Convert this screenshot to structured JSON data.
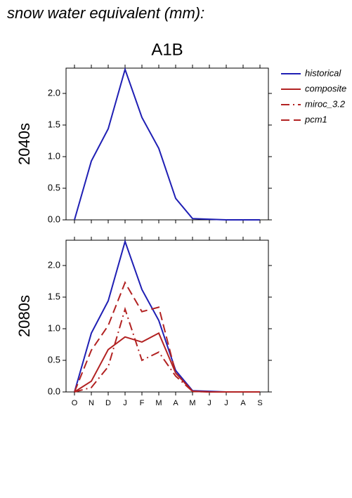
{
  "title": "snow water equivalent (mm):",
  "subtitle": "A1B",
  "chart_data": [
    {
      "type": "line",
      "ylabel": "2040s",
      "ylim": [
        0,
        2.4
      ],
      "yticks": [
        {
          "value": 0,
          "label": "0.0"
        },
        {
          "value": 0.5,
          "label": "0.5"
        },
        {
          "value": 1,
          "label": "1.0"
        },
        {
          "value": 1.5,
          "label": "1.5"
        },
        {
          "value": 2,
          "label": "2.0"
        }
      ],
      "series": [
        {
          "name": "historical",
          "color": "#1f1fb4",
          "linestyle": "solid",
          "values": [
            0,
            0.93,
            1.44,
            2.38,
            1.62,
            1.13,
            0.34,
            0.02,
            0.01,
            0,
            0,
            0
          ]
        }
      ]
    },
    {
      "type": "line",
      "ylabel": "2080s",
      "ylim": [
        0,
        2.4
      ],
      "yticks": [
        {
          "value": 0,
          "label": "0.0"
        },
        {
          "value": 0.5,
          "label": "0.5"
        },
        {
          "value": 1,
          "label": "1.0"
        },
        {
          "value": 1.5,
          "label": "1.5"
        },
        {
          "value": 2,
          "label": "2.0"
        }
      ],
      "categories": [
        "O",
        "N",
        "D",
        "J",
        "F",
        "M",
        "A",
        "M",
        "J",
        "J",
        "A",
        "S"
      ],
      "legend": "right",
      "series": [
        {
          "name": "historical",
          "color": "#1f1fb4",
          "linestyle": "solid",
          "values": [
            0,
            0.93,
            1.44,
            2.38,
            1.62,
            1.13,
            0.34,
            0.02,
            0.01,
            0,
            0,
            0
          ]
        },
        {
          "name": "composite",
          "color": "#b22222",
          "linestyle": "solid",
          "values": [
            0,
            0.17,
            0.67,
            0.87,
            0.79,
            0.93,
            0.3,
            0.01,
            0,
            0,
            0,
            0
          ]
        },
        {
          "name": "miroc_3.2",
          "color": "#b22222",
          "linestyle": "dashdot",
          "values": [
            0,
            0.07,
            0.4,
            1.31,
            0.5,
            0.63,
            0.25,
            0.01,
            0,
            0,
            0,
            0
          ]
        },
        {
          "name": "pcm1",
          "color": "#b22222",
          "linestyle": "dashed",
          "values": [
            0,
            0.66,
            1.05,
            1.73,
            1.27,
            1.34,
            0.3,
            0.01,
            0,
            0,
            0,
            0
          ]
        }
      ]
    }
  ]
}
